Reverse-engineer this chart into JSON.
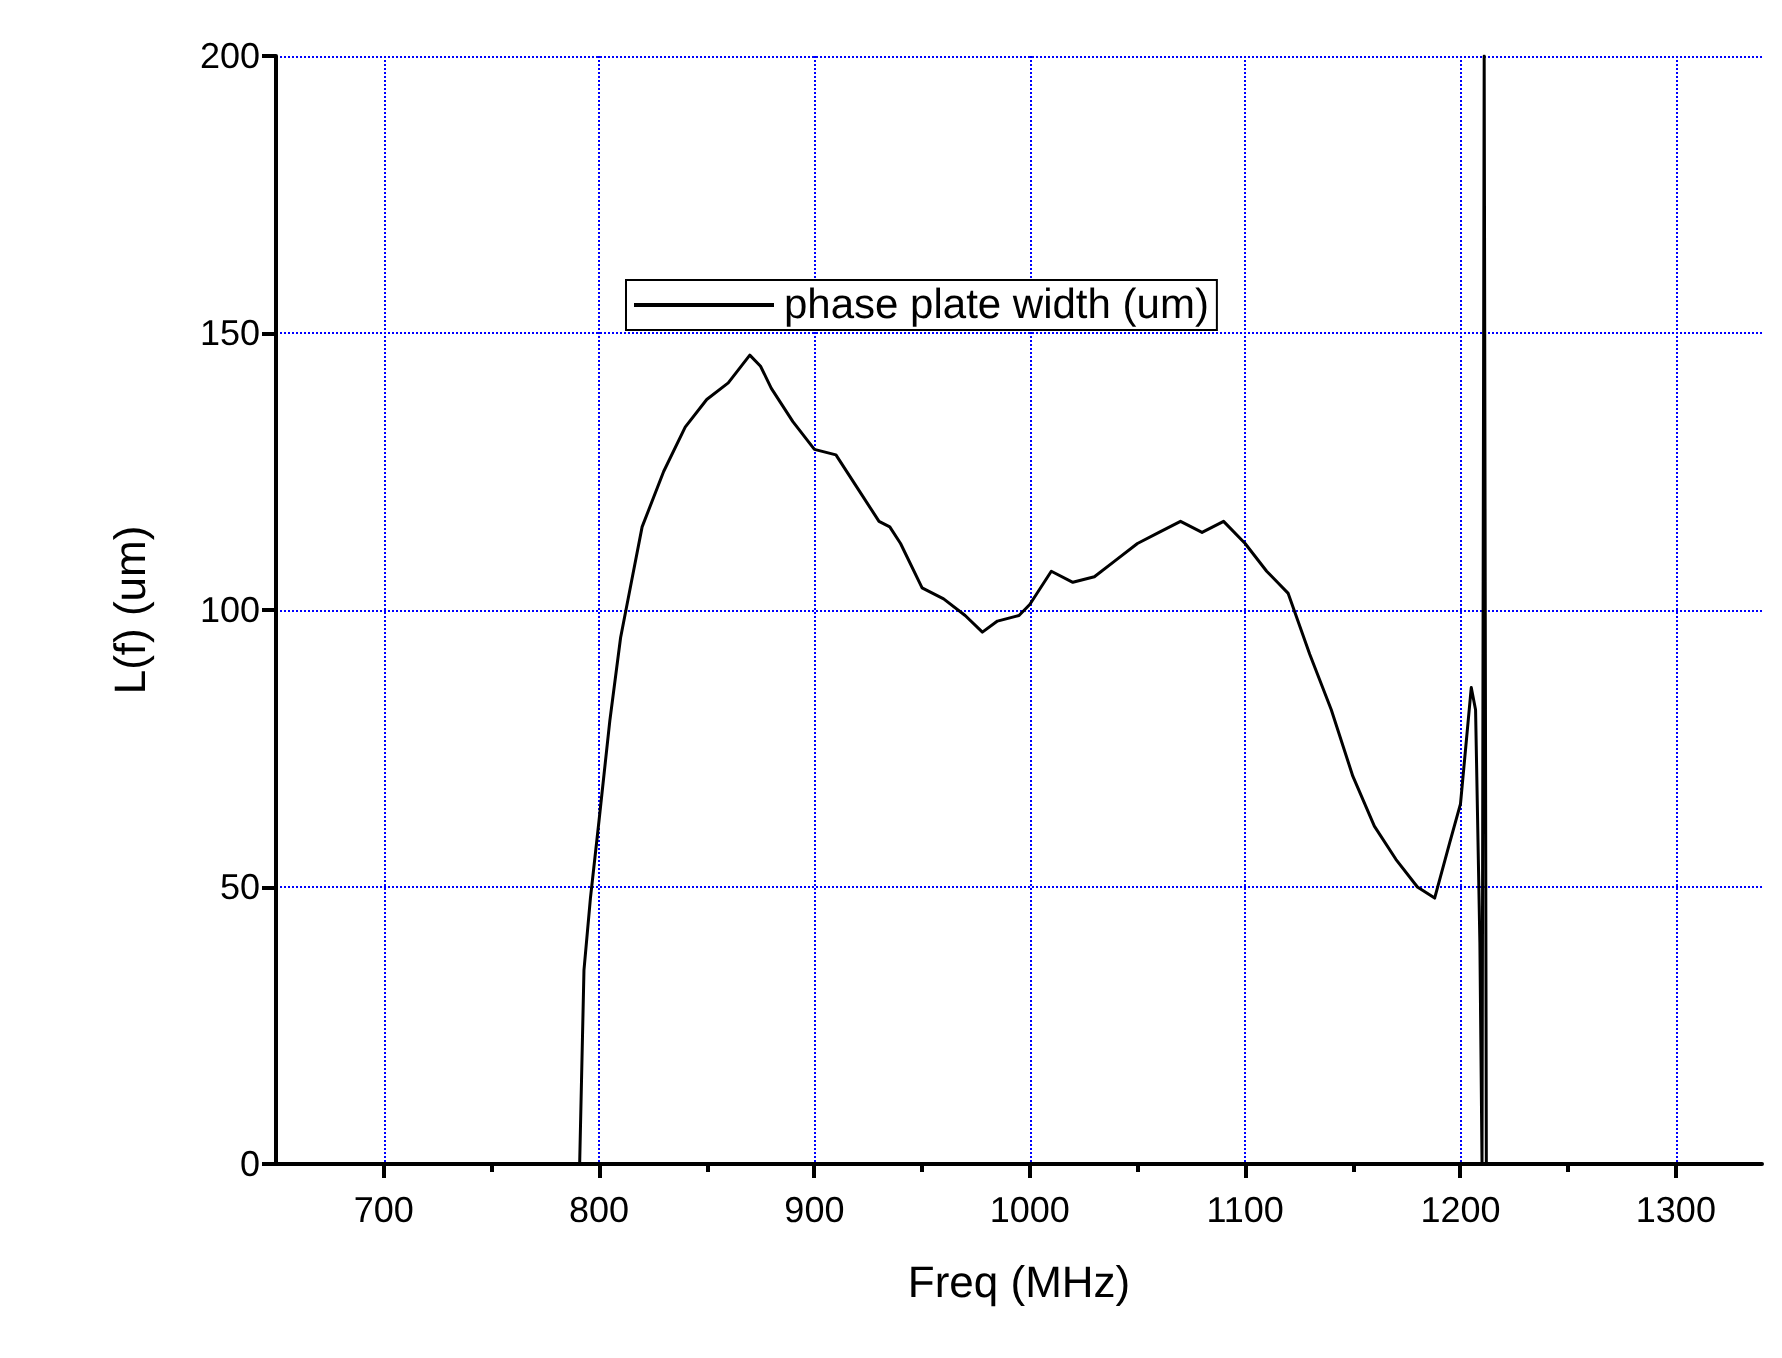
{
  "chart_data": {
    "type": "line",
    "xlabel": "Freq (MHz)",
    "ylabel": "L(f) (um)",
    "xlim": [
      650,
      1340
    ],
    "xticks": [
      700,
      800,
      900,
      1000,
      1100,
      1200,
      1300
    ],
    "ylim": [
      0,
      200
    ],
    "yticks": [
      0,
      50,
      100,
      150,
      200
    ],
    "grid": true,
    "legend": "top",
    "marker": "none",
    "line_style": "solid",
    "series": [
      {
        "name": "phase plate width (um)",
        "color": "#000000",
        "x": [
          791,
          793,
          796,
          800,
          805,
          810,
          815,
          820,
          830,
          840,
          850,
          860,
          870,
          875,
          880,
          890,
          900,
          910,
          920,
          930,
          935,
          940,
          950,
          960,
          970,
          978,
          985,
          995,
          1000,
          1010,
          1020,
          1030,
          1040,
          1050,
          1060,
          1070,
          1080,
          1090,
          1100,
          1110,
          1115,
          1120,
          1130,
          1140,
          1150,
          1160,
          1170,
          1180,
          1188,
          1195,
          1200,
          1205,
          1207,
          1209,
          1210,
          1211,
          1212
        ],
        "values": [
          0,
          35,
          48,
          62,
          80,
          95,
          105,
          115,
          125,
          133,
          138,
          141,
          146,
          144,
          140,
          134,
          129,
          128,
          122,
          116,
          115,
          112,
          104,
          102,
          99,
          96,
          98,
          99,
          101,
          107,
          105,
          106,
          109,
          112,
          114,
          116,
          114,
          116,
          112,
          107,
          105,
          103,
          92,
          82,
          70,
          61,
          55,
          50,
          48,
          58,
          65,
          86,
          82,
          40,
          0,
          200,
          0
        ]
      }
    ]
  }
}
